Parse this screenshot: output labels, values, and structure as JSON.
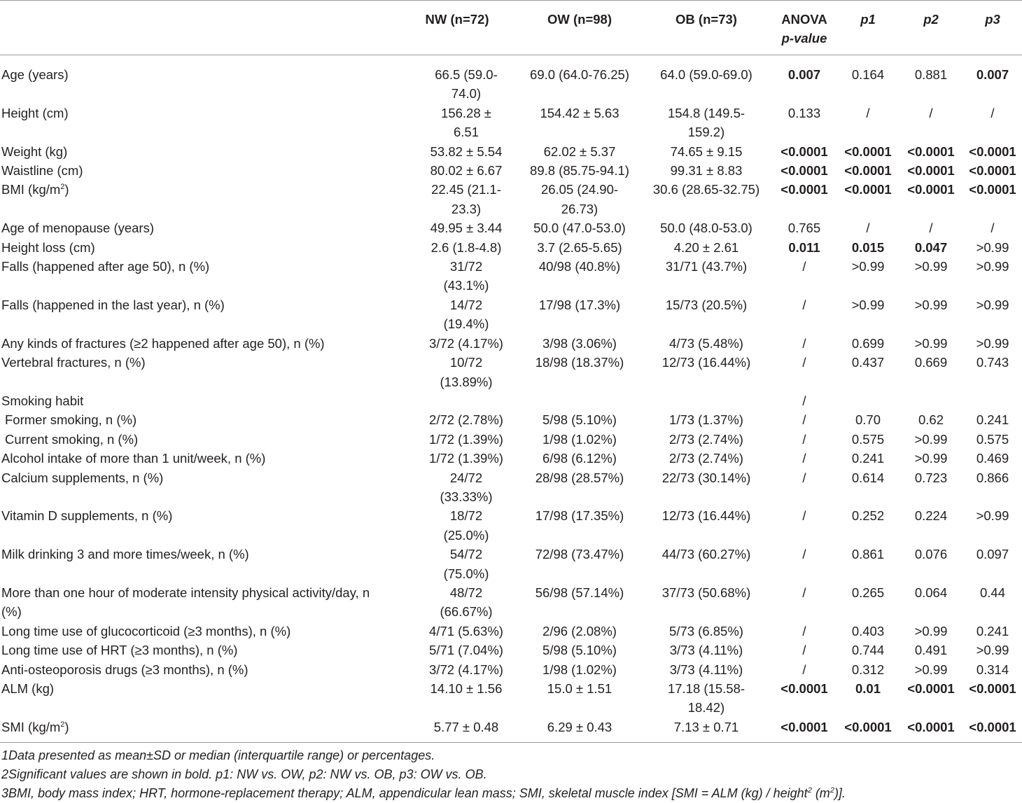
{
  "table": {
    "columns": [
      {
        "label": ""
      },
      {
        "label": "NW (n=72)"
      },
      {
        "label": "OW (n=98)"
      },
      {
        "label": "OB (n=73)"
      },
      {
        "label": "ANOVA",
        "sub": "p-value"
      },
      {
        "label": "p1"
      },
      {
        "label": "p2"
      },
      {
        "label": "p3"
      }
    ],
    "rows": [
      {
        "label": "Age (years)",
        "cells": [
          "66.5 (59.0-74.0)",
          "69.0 (64.0-76.25)",
          "64.0 (59.0-69.0)",
          "0.007",
          "0.164",
          "0.881",
          "0.007"
        ],
        "bold": [
          false,
          false,
          false,
          true,
          false,
          false,
          true
        ]
      },
      {
        "label": "Height (cm)",
        "cells": [
          "156.28 ± 6.51",
          "154.42 ± 5.63",
          "154.8 (149.5-159.2)",
          "0.133",
          "/",
          "/",
          "/"
        ],
        "bold": [
          false,
          false,
          false,
          false,
          false,
          false,
          false
        ]
      },
      {
        "label": "Weight (kg)",
        "cells": [
          "53.82 ± 5.54",
          "62.02 ± 5.37",
          "74.65 ± 9.15",
          "<0.0001",
          "<0.0001",
          "<0.0001",
          "<0.0001"
        ],
        "bold": [
          false,
          false,
          false,
          true,
          true,
          true,
          true
        ]
      },
      {
        "label": "Waistline (cm)",
        "cells": [
          "80.02 ± 6.67",
          "89.8 (85.75-94.1)",
          "99.31 ± 8.83",
          "<0.0001",
          "<0.0001",
          "<0.0001",
          "<0.0001"
        ],
        "bold": [
          false,
          false,
          false,
          true,
          true,
          true,
          true
        ]
      },
      {
        "label": "BMI (kg/m",
        "sup": "2",
        "label_after": ")",
        "cells": [
          "22.45 (21.1-23.3)",
          "26.05 (24.90-26.73)",
          "30.6 (28.65-32.75)",
          "<0.0001",
          "<0.0001",
          "<0.0001",
          "<0.0001"
        ],
        "bold": [
          false,
          false,
          false,
          true,
          true,
          true,
          true
        ]
      },
      {
        "label": "Age of menopause (years)",
        "cells": [
          "49.95 ± 3.44",
          "50.0 (47.0-53.0)",
          "50.0 (48.0-53.0)",
          "0.765",
          "/",
          "/",
          "/"
        ],
        "bold": [
          false,
          false,
          false,
          false,
          false,
          false,
          false
        ]
      },
      {
        "label": "Height loss (cm)",
        "cells": [
          "2.6 (1.8-4.8)",
          "3.7 (2.65-5.65)",
          "4.20 ± 2.61",
          "0.011",
          "0.015",
          "0.047",
          ">0.99"
        ],
        "bold": [
          false,
          false,
          false,
          true,
          true,
          true,
          false
        ]
      },
      {
        "label": "Falls (happened after age 50), n (%)",
        "cells": [
          "31/72 (43.1%)",
          "40/98 (40.8%)",
          "31/71 (43.7%)",
          "/",
          ">0.99",
          ">0.99",
          ">0.99"
        ],
        "bold": [
          false,
          false,
          false,
          false,
          false,
          false,
          false
        ]
      },
      {
        "label": "Falls (happened in the last year), n (%)",
        "cells": [
          "14/72 (19.4%)",
          "17/98 (17.3%)",
          "15/73 (20.5%)",
          "/",
          ">0.99",
          ">0.99",
          ">0.99"
        ],
        "bold": [
          false,
          false,
          false,
          false,
          false,
          false,
          false
        ]
      },
      {
        "label": "Any kinds of fractures (≥2 happened after age 50), n (%)",
        "cells": [
          "3/72 (4.17%)",
          "3/98 (3.06%)",
          "4/73 (5.48%)",
          "/",
          "0.699",
          ">0.99",
          ">0.99"
        ],
        "bold": [
          false,
          false,
          false,
          false,
          false,
          false,
          false
        ]
      },
      {
        "label": "Vertebral fractures, n (%)",
        "cells": [
          "10/72 (13.89%)",
          "18/98 (18.37%)",
          "12/73 (16.44%)",
          "/",
          "0.437",
          "0.669",
          "0.743"
        ],
        "bold": [
          false,
          false,
          false,
          false,
          false,
          false,
          false
        ]
      },
      {
        "label": "Smoking habit",
        "cells": [
          "",
          "",
          "",
          "/",
          "",
          "",
          ""
        ],
        "bold": [
          false,
          false,
          false,
          false,
          false,
          false,
          false
        ]
      },
      {
        "label": "Former smoking, n (%)",
        "indent": true,
        "cells": [
          "2/72 (2.78%)",
          "5/98 (5.10%)",
          "1/73 (1.37%)",
          "/",
          "0.70",
          "0.62",
          "0.241"
        ],
        "bold": [
          false,
          false,
          false,
          false,
          false,
          false,
          false
        ]
      },
      {
        "label": "Current smoking, n (%)",
        "indent": true,
        "cells": [
          "1/72 (1.39%)",
          "1/98 (1.02%)",
          "2/73 (2.74%)",
          "/",
          "0.575",
          ">0.99",
          "0.575"
        ],
        "bold": [
          false,
          false,
          false,
          false,
          false,
          false,
          false
        ]
      },
      {
        "label": "Alcohol intake of more than 1 unit/week, n (%)",
        "cells": [
          "1/72 (1.39%)",
          "6/98 (6.12%)",
          "2/73 (2.74%)",
          "/",
          "0.241",
          ">0.99",
          "0.469"
        ],
        "bold": [
          false,
          false,
          false,
          false,
          false,
          false,
          false
        ]
      },
      {
        "label": "Calcium supplements, n (%)",
        "cells": [
          "24/72 (33.33%)",
          "28/98 (28.57%)",
          "22/73 (30.14%)",
          "/",
          "0.614",
          "0.723",
          "0.866"
        ],
        "bold": [
          false,
          false,
          false,
          false,
          false,
          false,
          false
        ]
      },
      {
        "label": "Vitamin D supplements, n (%)",
        "cells": [
          "18/72 (25.0%)",
          "17/98 (17.35%)",
          "12/73 (16.44%)",
          "/",
          "0.252",
          "0.224",
          ">0.99"
        ],
        "bold": [
          false,
          false,
          false,
          false,
          false,
          false,
          false
        ]
      },
      {
        "label": "Milk drinking 3 and more times/week, n (%)",
        "cells": [
          "54/72 (75.0%)",
          "72/98 (73.47%)",
          "44/73 (60.27%)",
          "/",
          "0.861",
          "0.076",
          "0.097"
        ],
        "bold": [
          false,
          false,
          false,
          false,
          false,
          false,
          false
        ]
      },
      {
        "label": "More than one hour of moderate intensity physical activity/day, n (%)",
        "cells": [
          "48/72 (66.67%)",
          "56/98 (57.14%)",
          "37/73 (50.68%)",
          "/",
          "0.265",
          "0.064",
          "0.44"
        ],
        "bold": [
          false,
          false,
          false,
          false,
          false,
          false,
          false
        ]
      },
      {
        "label": "Long time use of glucocorticoid (≥3 months), n (%)",
        "cells": [
          "4/71 (5.63%)",
          "2/96 (2.08%)",
          "5/73 (6.85%)",
          "/",
          "0.403",
          ">0.99",
          "0.241"
        ],
        "bold": [
          false,
          false,
          false,
          false,
          false,
          false,
          false
        ]
      },
      {
        "label": "Long time use of HRT (≥3 months), n (%)",
        "cells": [
          "5/71 (7.04%)",
          "5/98 (5.10%)",
          "3/73 (4.11%)",
          "/",
          "0.744",
          "0.491",
          ">0.99"
        ],
        "bold": [
          false,
          false,
          false,
          false,
          false,
          false,
          false
        ]
      },
      {
        "label": "Anti-osteoporosis drugs (≥3 months), n (%)",
        "cells": [
          "3/72 (4.17%)",
          "1/98 (1.02%)",
          "3/73 (4.11%)",
          "/",
          "0.312",
          ">0.99",
          "0.314"
        ],
        "bold": [
          false,
          false,
          false,
          false,
          false,
          false,
          false
        ]
      },
      {
        "label": "ALM (kg)",
        "cells": [
          "14.10 ± 1.56",
          "15.0 ± 1.51",
          "17.18 (15.58-18.42)",
          "<0.0001",
          "0.01",
          "<0.0001",
          "<0.0001"
        ],
        "bold": [
          false,
          false,
          false,
          true,
          true,
          true,
          true
        ]
      },
      {
        "label": "SMI (kg/m",
        "sup": "2",
        "label_after": ")",
        "cells": [
          "5.77 ± 0.48",
          "6.29 ± 0.43",
          "7.13 ± 0.71",
          "<0.0001",
          "<0.0001",
          "<0.0001",
          "<0.0001"
        ],
        "bold": [
          false,
          false,
          false,
          true,
          true,
          true,
          true
        ]
      }
    ]
  },
  "footnotes": {
    "note1": "1Data presented as mean±SD or median (interquartile range) or percentages.",
    "note2": "2Significant values are shown in bold. p1: NW vs. OW, p2: NW vs. OB, p3: OW vs. OB.",
    "note3": {
      "a": "3BMI, body mass index; HRT, hormone-replacement therapy; ALM, appendicular lean mass; SMI, skeletal muscle index [SMI = ALM (kg) / height",
      "sup1": "2",
      "b": " (m",
      "sup2": "2",
      "c": ")]."
    }
  }
}
